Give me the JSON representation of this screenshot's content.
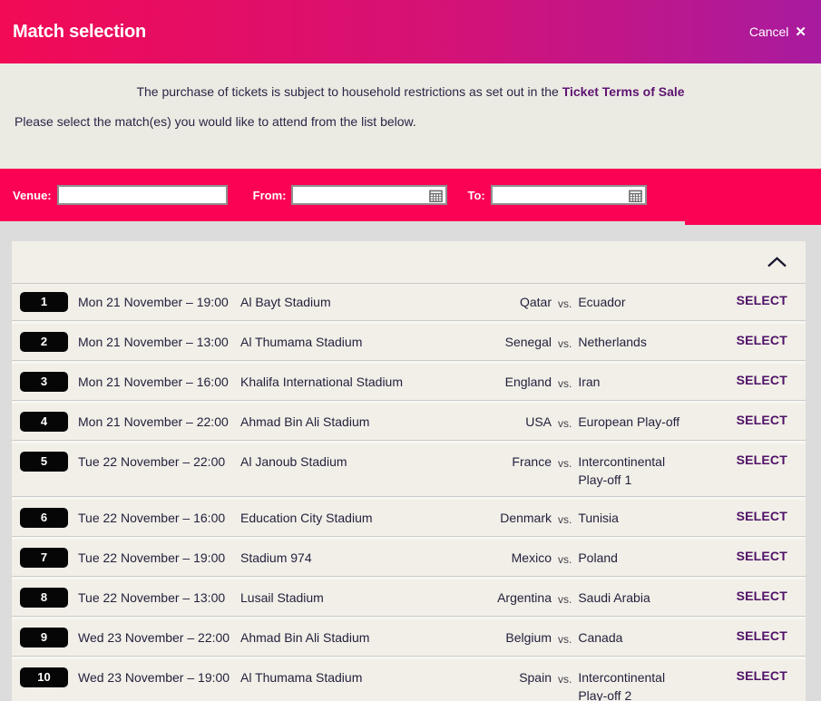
{
  "header": {
    "title": "Match selection",
    "cancel_label": "Cancel",
    "close_icon": "✕"
  },
  "info": {
    "restriction_text": "The purchase of tickets is subject to household restrictions as set out in the ",
    "terms_link": "Ticket Terms of Sale",
    "instruction_text": "Please select the match(es) you would like to attend from the list below."
  },
  "filters": {
    "venue_label": "Venue:",
    "venue_value": "",
    "from_label": "From:",
    "from_value": "",
    "to_label": "To:",
    "to_value": ""
  },
  "list": {
    "collapse_icon": "chevron-up",
    "select_label": "SELECT",
    "vs_label": "vs.",
    "matches": [
      {
        "number": "1",
        "datetime": "Mon 21 November – 19:00",
        "stadium": "Al Bayt Stadium",
        "home": "Qatar",
        "away": "Ecuador"
      },
      {
        "number": "2",
        "datetime": "Mon 21 November – 13:00",
        "stadium": "Al Thumama Stadium",
        "home": "Senegal",
        "away": "Netherlands"
      },
      {
        "number": "3",
        "datetime": "Mon 21 November – 16:00",
        "stadium": "Khalifa International Stadium",
        "home": "England",
        "away": "Iran"
      },
      {
        "number": "4",
        "datetime": "Mon 21 November – 22:00",
        "stadium": "Ahmad Bin Ali Stadium",
        "home": "USA",
        "away": "European Play-off"
      },
      {
        "number": "5",
        "datetime": "Tue 22 November – 22:00",
        "stadium": "Al Janoub Stadium",
        "home": "France",
        "away": "Intercontinental Play-off 1"
      },
      {
        "number": "6",
        "datetime": "Tue 22 November – 16:00",
        "stadium": "Education City Stadium",
        "home": "Denmark",
        "away": "Tunisia"
      },
      {
        "number": "7",
        "datetime": "Tue 22 November – 19:00",
        "stadium": "Stadium 974",
        "home": "Mexico",
        "away": "Poland"
      },
      {
        "number": "8",
        "datetime": "Tue 22 November – 13:00",
        "stadium": "Lusail Stadium",
        "home": "Argentina",
        "away": "Saudi Arabia"
      },
      {
        "number": "9",
        "datetime": "Wed 23 November – 22:00",
        "stadium": "Ahmad Bin Ali Stadium",
        "home": "Belgium",
        "away": "Canada"
      },
      {
        "number": "10",
        "datetime": "Wed 23 November – 19:00",
        "stadium": "Al Thumama Stadium",
        "home": "Spain",
        "away": "Intercontinental Play-off 2"
      }
    ]
  },
  "colors": {
    "header_gradient_start": "#f20a55",
    "header_gradient_end": "#a81b9f",
    "filter_bar": "#fb0254",
    "info_bg": "#ecebe3",
    "page_bg": "#dcdcdc",
    "row_bg": "#f1efe7",
    "select_purple": "#4f1168",
    "link_purple": "#5d1372",
    "badge_black": "#060606"
  }
}
